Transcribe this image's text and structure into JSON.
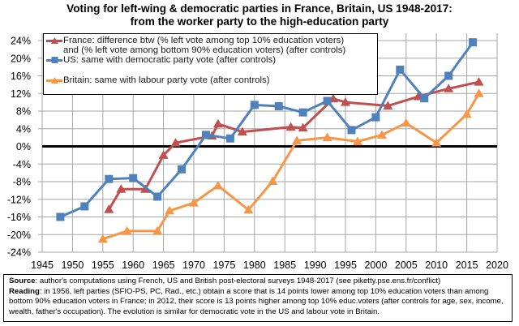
{
  "chart_data": {
    "type": "line",
    "title": "Voting for left-wing & democratic parties in France, Britain, US 1948-2017:",
    "subtitle": "from the worker party to the high-education party",
    "xlabel": "",
    "ylabel": "",
    "xlim": [
      1945,
      2020
    ],
    "ylim": [
      -24,
      24
    ],
    "x_ticks": [
      1945,
      1950,
      1955,
      1960,
      1965,
      1970,
      1975,
      1980,
      1985,
      1990,
      1995,
      2000,
      2005,
      2010,
      2015,
      2020
    ],
    "x_tick_labels": [
      "1945",
      "1950",
      "1955",
      "1960",
      "1965",
      "1970",
      "1975",
      "1980",
      "1985",
      "1990",
      "1995",
      "2000",
      "2005",
      "2010",
      "2015",
      "2020"
    ],
    "y_ticks": [
      -24,
      -20,
      -16,
      -12,
      -8,
      -4,
      0,
      4,
      8,
      12,
      16,
      20,
      24
    ],
    "y_tick_labels": [
      "-24%",
      "-20%",
      "-16%",
      "-12%",
      "-8%",
      "-4%",
      "0%",
      "4%",
      "8%",
      "12%",
      "16%",
      "20%",
      "24%"
    ],
    "grid": true,
    "zero_line": true,
    "legend_position": "top-left",
    "series": [
      {
        "name": "France",
        "legend": [
          "France: difference btw (% left vote among top 10% education voters)",
          "and (% left vote among bottom 90% education voters) (after controls)"
        ],
        "color": "#C0504D",
        "marker": "triangle",
        "x": [
          1956,
          1958,
          1962,
          1965,
          1967,
          1973,
          1974,
          1978,
          1986,
          1988,
          1993,
          1995,
          2002,
          2007,
          2012,
          2017
        ],
        "values": [
          -14.3,
          -9.7,
          -9.7,
          -2.0,
          0.8,
          2.4,
          5.1,
          3.3,
          4.4,
          4.2,
          10.8,
          10.0,
          9.2,
          11.3,
          13.1,
          14.6
        ]
      },
      {
        "name": "US",
        "legend": [
          "US: same with democratic party vote (after controls)"
        ],
        "color": "#4F81BD",
        "marker": "square",
        "x": [
          1948,
          1952,
          1956,
          1960,
          1964,
          1968,
          1972,
          1976,
          1980,
          1984,
          1988,
          1992,
          1996,
          2000,
          2004,
          2008,
          2012,
          2016
        ],
        "values": [
          -16.0,
          -13.6,
          -7.4,
          -7.2,
          -11.4,
          -5.2,
          2.6,
          1.8,
          9.4,
          9.1,
          7.7,
          10.3,
          3.7,
          6.6,
          17.4,
          10.9,
          16.0,
          23.6
        ]
      },
      {
        "name": "Britain",
        "legend": [
          "Britain: same with labour party vote (after controls)"
        ],
        "color": "#F79646",
        "marker": "triangle",
        "x": [
          1955,
          1959,
          1964,
          1966,
          1970,
          1974,
          1979,
          1983,
          1987,
          1992,
          1997,
          2001,
          2005,
          2010,
          2015,
          2017
        ],
        "values": [
          -21.0,
          -19.2,
          -19.2,
          -14.6,
          -12.8,
          -8.9,
          -14.4,
          -7.9,
          1.3,
          2.0,
          1.1,
          2.6,
          5.3,
          0.8,
          7.3,
          12.0
        ]
      }
    ]
  },
  "footer": {
    "source_label": "Source",
    "source_text": ": author's computations using French, US and British post-electoral surveys 1948-2017 (see piketty.pse.ens.fr/conflict)",
    "reading_label": "Reading",
    "reading_text": ": in 1956, left parties (SFIO-PS, PC, Rad., etc.) obtain a score that is 14 points lower among top 10% education voters than among bottom 90% education voters in France; in 2012, their score is 13 points higher among top 10% educ.voters (after controls for age, sex, income, wealth, father's occupation). The evolution is similar for democratic vote in the US and labour vote in Britain."
  }
}
